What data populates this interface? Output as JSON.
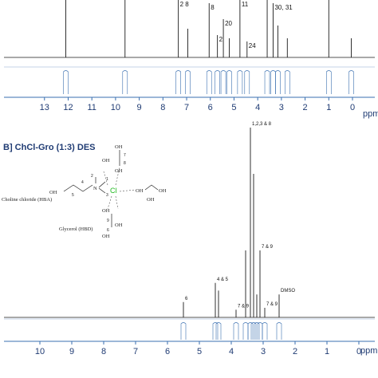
{
  "colors": {
    "spectrum_line": "#1a1a1a",
    "integral_line": "#3a6fb0",
    "axis_blue": "#1f3b73",
    "chloride": "#1db81d",
    "dashed": "#555555"
  },
  "chart_data": [
    {
      "type": "line",
      "title": "",
      "xlabel": "ppm",
      "x_direction": "decreasing",
      "xlim": [
        13.8,
        0
      ],
      "x_ticks": [
        "13",
        "12",
        "11",
        "10",
        "9",
        "8",
        "7",
        "6",
        "5",
        "4",
        "3",
        "2",
        "1",
        "0"
      ],
      "peaks": [
        {
          "ppm": 12.1,
          "height": 0.95,
          "label": ""
        },
        {
          "ppm": 9.6,
          "height": 0.9,
          "label": ""
        },
        {
          "ppm": 7.35,
          "height": 0.95,
          "label": "2 8"
        },
        {
          "ppm": 6.95,
          "height": 0.45,
          "label": ""
        },
        {
          "ppm": 6.05,
          "height": 0.85,
          "label": "8"
        },
        {
          "ppm": 5.7,
          "height": 0.35,
          "label": "2"
        },
        {
          "ppm": 5.45,
          "height": 0.6,
          "label": "20"
        },
        {
          "ppm": 5.2,
          "height": 0.3,
          "label": ""
        },
        {
          "ppm": 4.75,
          "height": 0.95,
          "label": "11"
        },
        {
          "ppm": 4.45,
          "height": 0.25,
          "label": "24"
        },
        {
          "ppm": 3.6,
          "height": 0.95,
          "label": ""
        },
        {
          "ppm": 3.35,
          "height": 0.85,
          "label": "30, 31"
        },
        {
          "ppm": 3.15,
          "height": 0.5,
          "label": ""
        },
        {
          "ppm": 2.75,
          "height": 0.3,
          "label": ""
        },
        {
          "ppm": 1.0,
          "height": 0.9,
          "label": ""
        },
        {
          "ppm": 0.05,
          "height": 0.3,
          "label": ""
        }
      ]
    },
    {
      "type": "line",
      "title": "B] ChCl-Gro (1:3) DES",
      "xlabel": "ppm",
      "x_direction": "decreasing",
      "xlim": [
        10.5,
        0
      ],
      "x_ticks": [
        "10",
        "9",
        "8",
        "7",
        "6",
        "5",
        "4",
        "3",
        "2",
        "1",
        "0"
      ],
      "peaks": [
        {
          "ppm": 5.5,
          "height": 0.08,
          "label": "6"
        },
        {
          "ppm": 4.5,
          "height": 0.18,
          "label": "4 & 5"
        },
        {
          "ppm": 4.4,
          "height": 0.14,
          "label": ""
        },
        {
          "ppm": 3.85,
          "height": 0.04,
          "label": "7 & 9"
        },
        {
          "ppm": 3.55,
          "height": 0.35,
          "label": ""
        },
        {
          "ppm": 3.4,
          "height": 1.0,
          "label": "1,2,3 & 8"
        },
        {
          "ppm": 3.3,
          "height": 0.75,
          "label": ""
        },
        {
          "ppm": 3.2,
          "height": 0.12,
          "label": ""
        },
        {
          "ppm": 3.1,
          "height": 0.35,
          "label": "7 & 9"
        },
        {
          "ppm": 2.95,
          "height": 0.05,
          "label": "7 & 9"
        },
        {
          "ppm": 2.5,
          "height": 0.12,
          "label": "DMSO"
        }
      ]
    }
  ],
  "structure": {
    "hba_label": "Choline chloride (HBA)",
    "hbd_label": "Glycerol (HBD)",
    "chloride_label": "Cl",
    "oh_label": "OH",
    "nitrogen_label": "N",
    "atom_numbers": [
      "1",
      "2",
      "3",
      "4",
      "5",
      "6",
      "7",
      "8",
      "9"
    ]
  }
}
